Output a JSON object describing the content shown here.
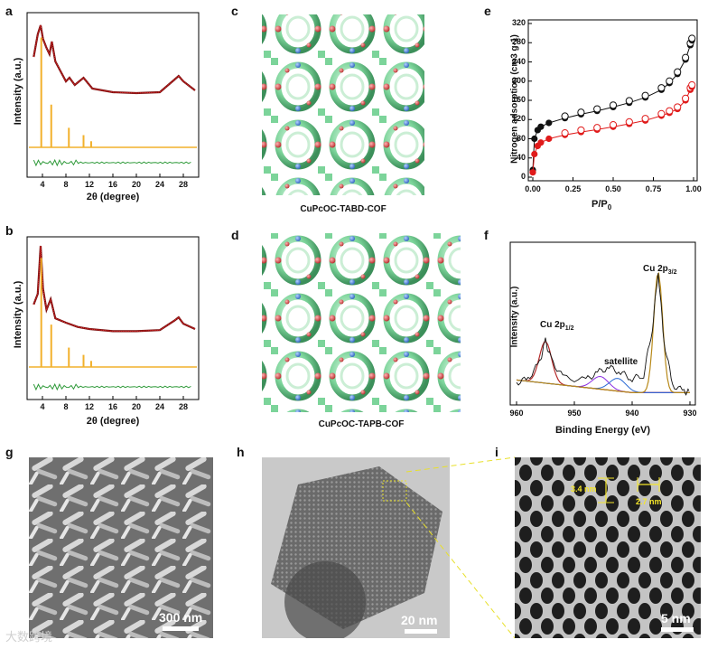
{
  "panels": {
    "a": "a",
    "b": "b",
    "c": "c",
    "d": "d",
    "e": "e",
    "f": "f",
    "g": "g",
    "h": "h",
    "i": "i"
  },
  "xrd": {
    "xlabel": "2θ (degree)",
    "ylabel": "Intensity (a.u.)",
    "xticks": [
      "4",
      "8",
      "12",
      "16",
      "20",
      "24",
      "28"
    ]
  },
  "structures": {
    "c_caption": "CuPcOC-TABD-COF",
    "d_caption": "CuPcOC-TAPB-COF"
  },
  "sorption": {
    "xlabel": "P/P",
    "xlabel_sub": "0",
    "ylabel": "Nitrogen adsorption (cm3 g-1)",
    "xticks": [
      "0.00",
      "0.25",
      "0.50",
      "0.75",
      "1.00"
    ],
    "yticks": [
      "0",
      "40",
      "80",
      "120",
      "160",
      "200",
      "240",
      "280",
      "320"
    ]
  },
  "xps": {
    "xlabel": "Binding Energy (eV)",
    "ylabel": "Intensity (a.u.)",
    "xticks": [
      "960",
      "950",
      "940",
      "930"
    ],
    "peak1_label": "Cu 2p",
    "peak1_sub": "1/2",
    "peak2_label": "Cu 2p",
    "peak2_sub": "3/2",
    "satellite_label": "satellite"
  },
  "microscopy": {
    "g_scale": "300 nm",
    "h_scale": "20 nm",
    "i_scale": "5 nm",
    "i_spacing1": "3.4 nm",
    "i_spacing2": "2.7 nm"
  },
  "watermark": "大数跨境",
  "chart_data": [
    {
      "type": "line",
      "panel": "a",
      "xlabel": "2θ (degree)",
      "ylabel": "Intensity (a.u.)",
      "xlim": [
        2,
        30
      ],
      "series": [
        {
          "x": [
            2.5,
            3.2,
            3.7,
            4.1,
            4.7,
            5.2,
            5.6,
            6.2,
            8.0,
            8.6,
            9.5,
            11.0,
            12.5,
            16,
            20,
            24,
            26.5,
            27.2,
            28,
            30
          ],
          "y": [
            0.65,
            0.9,
            1.0,
            0.85,
            0.75,
            0.68,
            0.82,
            0.6,
            0.38,
            0.42,
            0.34,
            0.42,
            0.3,
            0.26,
            0.25,
            0.26,
            0.4,
            0.44,
            0.38,
            0.28
          ]
        }
      ]
    },
    {
      "type": "line",
      "panel": "b",
      "xlabel": "2θ (degree)",
      "ylabel": "Intensity (a.u.)",
      "xlim": [
        2,
        30
      ],
      "series": [
        {
          "x": [
            2.5,
            3.2,
            3.7,
            4.1,
            4.7,
            5.4,
            6.2,
            8,
            10,
            12,
            16,
            20,
            24,
            26.5,
            27.2,
            28,
            30
          ],
          "y": [
            0.45,
            0.55,
            1.0,
            0.6,
            0.4,
            0.5,
            0.32,
            0.28,
            0.24,
            0.22,
            0.2,
            0.2,
            0.21,
            0.3,
            0.33,
            0.27,
            0.22
          ]
        }
      ]
    },
    {
      "type": "scatter",
      "panel": "e",
      "xlabel": "P/P0",
      "ylabel": "Nitrogen adsorption (cm3 g-1)",
      "xlim": [
        0,
        1
      ],
      "ylim": [
        0,
        320
      ],
      "series": [
        {
          "x": [
            0.0,
            0.01,
            0.03,
            0.05,
            0.1,
            0.2,
            0.3,
            0.4,
            0.5,
            0.6,
            0.7,
            0.8,
            0.85,
            0.9,
            0.95,
            0.98,
            0.99
          ],
          "y": [
            15,
            80,
            98,
            105,
            113,
            123,
            131,
            138,
            146,
            155,
            166,
            182,
            196,
            215,
            245,
            275,
            285
          ]
        },
        {
          "x": [
            0.0,
            0.01,
            0.03,
            0.05,
            0.1,
            0.2,
            0.3,
            0.4,
            0.5,
            0.6,
            0.7,
            0.8,
            0.85,
            0.9,
            0.95,
            0.98,
            0.99
          ],
          "y": [
            10,
            48,
            65,
            72,
            80,
            88,
            94,
            99,
            105,
            111,
            118,
            128,
            134,
            142,
            160,
            182,
            188
          ]
        }
      ]
    },
    {
      "type": "line",
      "panel": "f",
      "xlabel": "Binding Energy (eV)",
      "ylabel": "Intensity (a.u.)",
      "xlim": [
        960,
        930
      ],
      "series": [
        {
          "x": [
            960,
            958,
            956,
            955,
            954,
            952,
            948,
            946,
            944,
            942,
            940,
            938,
            936.5,
            935.5,
            934.5,
            933,
            931,
            930
          ],
          "y": [
            0.12,
            0.15,
            0.28,
            0.45,
            0.3,
            0.16,
            0.14,
            0.2,
            0.24,
            0.2,
            0.15,
            0.18,
            0.55,
            1.0,
            0.45,
            0.1,
            0.05,
            0.04
          ]
        }
      ]
    }
  ]
}
